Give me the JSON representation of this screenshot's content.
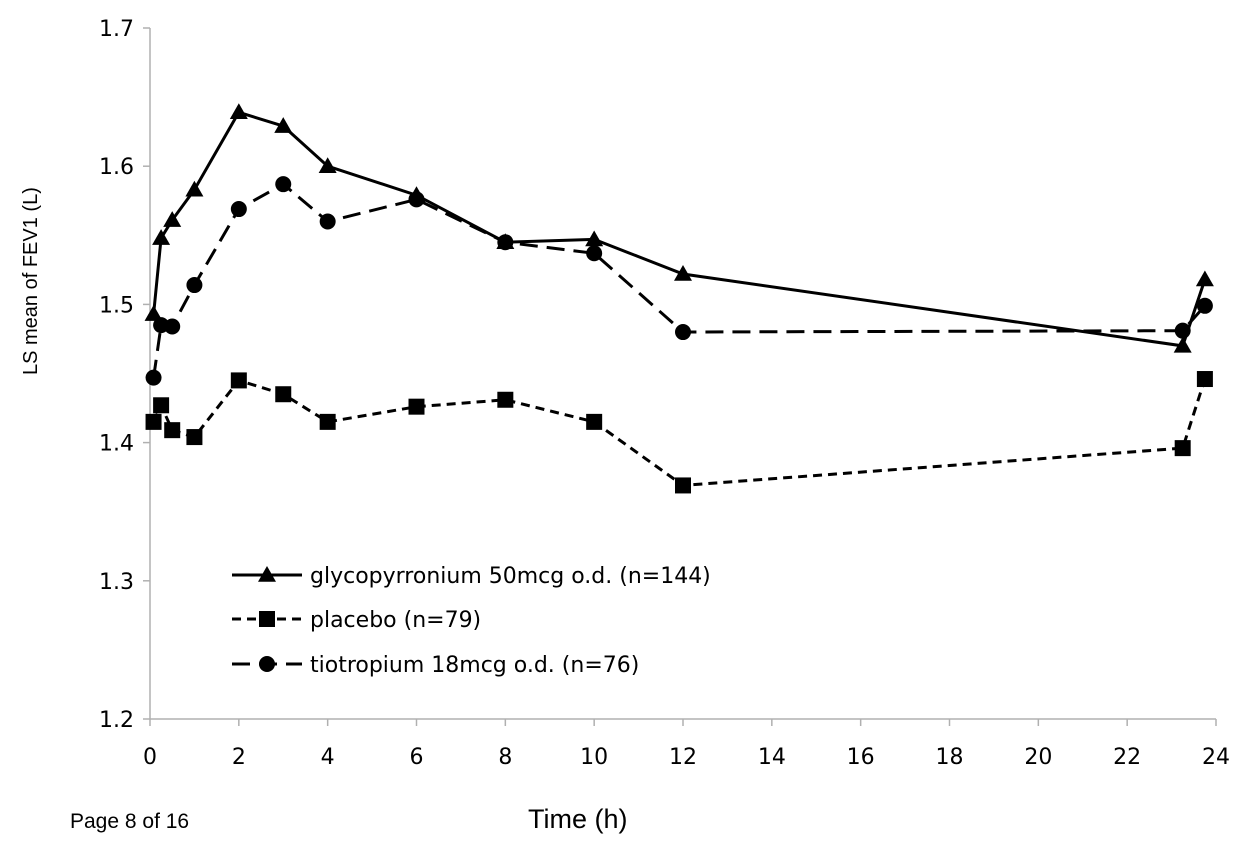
{
  "page_footer": "Page 8 of 16",
  "chart_data": {
    "type": "line",
    "xlabel": "Time (h)",
    "ylabel": "LS mean of FEV1 (L)",
    "xlim": [
      0,
      24
    ],
    "ylim": [
      1.2,
      1.7
    ],
    "x_ticks": [
      0,
      2,
      4,
      6,
      8,
      10,
      12,
      14,
      16,
      18,
      20,
      22,
      24
    ],
    "y_ticks": [
      1.2,
      1.3,
      1.4,
      1.5,
      1.6,
      1.7
    ],
    "y_tick_labels": [
      "1.2",
      "1.3",
      "1.4",
      "1.5",
      "1.6",
      "1.7"
    ],
    "grid": false,
    "legend_position": "lower-left",
    "series": [
      {
        "name": "glycopyrronium 50mcg o.d. (n=144)",
        "marker": "triangle",
        "line_style": "solid",
        "color": "#000000",
        "x": [
          0.08,
          0.25,
          0.5,
          1,
          2,
          3,
          4,
          6,
          8,
          10,
          12,
          23.25,
          23.75
        ],
        "y": [
          1.493,
          1.548,
          1.561,
          1.583,
          1.639,
          1.629,
          1.6,
          1.579,
          1.545,
          1.547,
          1.522,
          1.47,
          1.518
        ]
      },
      {
        "name": "placebo (n=79)",
        "marker": "square",
        "line_style": "short-dash",
        "color": "#000000",
        "x": [
          0.08,
          0.25,
          0.5,
          1,
          2,
          3,
          4,
          6,
          8,
          10,
          12,
          23.25,
          23.75
        ],
        "y": [
          1.415,
          1.427,
          1.409,
          1.404,
          1.445,
          1.435,
          1.415,
          1.426,
          1.431,
          1.415,
          1.369,
          1.396,
          1.446
        ]
      },
      {
        "name": "tiotropium 18mcg o.d. (n=76)",
        "marker": "circle",
        "line_style": "long-dash",
        "color": "#000000",
        "x": [
          0.08,
          0.25,
          0.5,
          1,
          2,
          3,
          4,
          6,
          8,
          10,
          12,
          23.25,
          23.75
        ],
        "y": [
          1.447,
          1.485,
          1.484,
          1.514,
          1.569,
          1.587,
          1.56,
          1.576,
          1.545,
          1.537,
          1.48,
          1.481,
          1.499
        ]
      }
    ]
  }
}
